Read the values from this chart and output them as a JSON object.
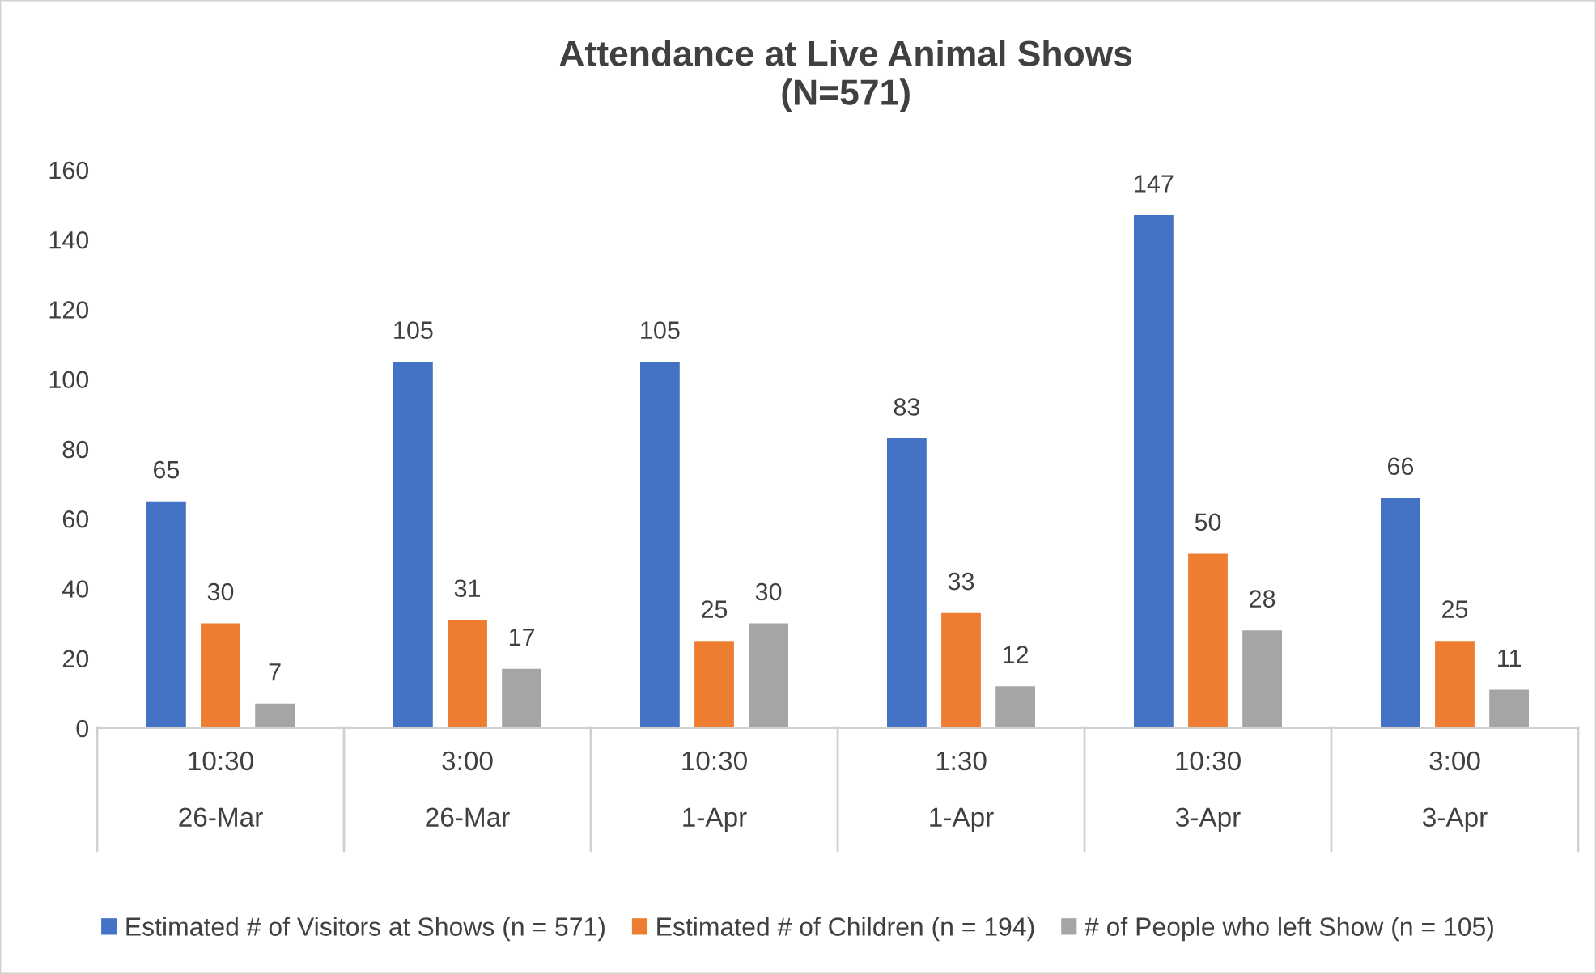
{
  "chart_data": {
    "type": "bar",
    "title": "Attendance at Live Animal Shows\n(N=571)",
    "categories": [
      "10:30\n26-Mar",
      "3:00\n26-Mar",
      "10:30\n1-Apr",
      "1:30\n1-Apr",
      "10:30\n3-Apr",
      "3:00\n3-Apr"
    ],
    "series": [
      {
        "name": "Estimated # of Visitors at Shows (n = 571)",
        "color": "#4472c4",
        "values": [
          65,
          105,
          105,
          83,
          147,
          66
        ]
      },
      {
        "name": "Estimated # of Children (n = 194)",
        "color": "#ed7d31",
        "values": [
          30,
          31,
          25,
          33,
          50,
          25
        ]
      },
      {
        "name": "# of People who left Show (n = 105)",
        "color": "#a5a5a5",
        "values": [
          7,
          17,
          30,
          12,
          28,
          11
        ]
      }
    ],
    "ylim": [
      0,
      160
    ],
    "yticks": [
      0,
      20,
      40,
      60,
      80,
      100,
      120,
      140,
      160
    ],
    "grid": false,
    "legend": "bottom",
    "data_labels": true
  }
}
